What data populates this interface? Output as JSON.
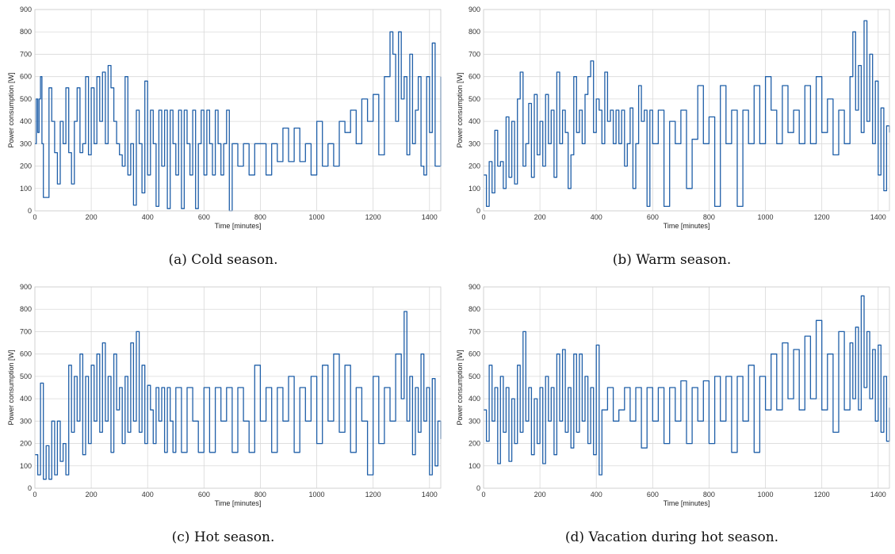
{
  "figure": {
    "captions": [
      "(a) Cold season.",
      "(b) Warm season.",
      "(c) Hot season.",
      "(d) Vacation during hot season."
    ]
  },
  "chart_data": [
    {
      "type": "line",
      "xlabel": "Time [minutes]",
      "ylabel": "Power consumption [W]",
      "xlim": [
        0,
        1440
      ],
      "ylim": [
        0,
        900
      ],
      "xticks": [
        0,
        200,
        400,
        600,
        800,
        1000,
        1200,
        1400
      ],
      "yticks": [
        0,
        100,
        200,
        300,
        400,
        500,
        600,
        700,
        800,
        900
      ],
      "grid": true,
      "line_color": "#1f5fa8",
      "x": [
        0,
        5,
        10,
        15,
        20,
        25,
        30,
        40,
        50,
        60,
        70,
        80,
        90,
        100,
        110,
        120,
        130,
        140,
        150,
        160,
        170,
        180,
        190,
        200,
        210,
        220,
        230,
        240,
        250,
        260,
        270,
        280,
        290,
        300,
        310,
        320,
        330,
        340,
        350,
        360,
        370,
        380,
        390,
        400,
        410,
        420,
        430,
        440,
        450,
        460,
        470,
        480,
        490,
        500,
        510,
        520,
        530,
        540,
        550,
        560,
        570,
        580,
        590,
        600,
        610,
        620,
        630,
        640,
        650,
        660,
        670,
        680,
        690,
        700,
        720,
        740,
        760,
        780,
        800,
        820,
        840,
        860,
        880,
        900,
        920,
        940,
        960,
        980,
        1000,
        1020,
        1040,
        1060,
        1080,
        1100,
        1120,
        1140,
        1160,
        1180,
        1200,
        1220,
        1240,
        1260,
        1270,
        1280,
        1290,
        1300,
        1310,
        1320,
        1330,
        1340,
        1350,
        1360,
        1370,
        1380,
        1390,
        1400,
        1410,
        1420,
        1430,
        1440
      ],
      "values": [
        300,
        500,
        350,
        500,
        600,
        300,
        60,
        60,
        550,
        400,
        260,
        120,
        400,
        300,
        550,
        260,
        120,
        400,
        550,
        260,
        300,
        600,
        250,
        550,
        300,
        600,
        400,
        620,
        300,
        650,
        550,
        400,
        300,
        250,
        200,
        600,
        160,
        300,
        25,
        450,
        300,
        80,
        580,
        160,
        450,
        300,
        20,
        450,
        200,
        450,
        10,
        450,
        300,
        160,
        450,
        10,
        450,
        300,
        160,
        450,
        10,
        300,
        450,
        160,
        450,
        300,
        160,
        450,
        300,
        160,
        300,
        450,
        0,
        300,
        200,
        300,
        160,
        300,
        300,
        160,
        300,
        220,
        370,
        220,
        370,
        220,
        300,
        160,
        400,
        200,
        300,
        200,
        400,
        350,
        450,
        300,
        500,
        400,
        520,
        250,
        600,
        800,
        700,
        400,
        800,
        500,
        600,
        250,
        700,
        300,
        450,
        600,
        200,
        160,
        600,
        350,
        750,
        200,
        200,
        600
      ]
    },
    {
      "type": "line",
      "xlabel": "Time [minutes]",
      "ylabel": "Power consumption [W]",
      "xlim": [
        0,
        1440
      ],
      "ylim": [
        0,
        900
      ],
      "xticks": [
        0,
        200,
        400,
        600,
        800,
        1000,
        1200,
        1400
      ],
      "yticks": [
        0,
        100,
        200,
        300,
        400,
        500,
        600,
        700,
        800,
        900
      ],
      "grid": true,
      "line_color": "#1f5fa8",
      "x": [
        0,
        10,
        20,
        30,
        40,
        50,
        60,
        70,
        80,
        90,
        100,
        110,
        120,
        130,
        140,
        150,
        160,
        170,
        180,
        190,
        200,
        210,
        220,
        230,
        240,
        250,
        260,
        270,
        280,
        290,
        300,
        310,
        320,
        330,
        340,
        350,
        360,
        370,
        380,
        390,
        400,
        410,
        420,
        430,
        440,
        450,
        460,
        470,
        480,
        490,
        500,
        510,
        520,
        530,
        540,
        550,
        560,
        570,
        580,
        590,
        600,
        620,
        640,
        660,
        680,
        700,
        720,
        740,
        760,
        780,
        800,
        820,
        840,
        860,
        880,
        900,
        920,
        940,
        960,
        980,
        1000,
        1020,
        1040,
        1060,
        1080,
        1100,
        1120,
        1140,
        1160,
        1180,
        1200,
        1220,
        1240,
        1260,
        1280,
        1300,
        1310,
        1320,
        1330,
        1340,
        1350,
        1360,
        1370,
        1380,
        1390,
        1400,
        1410,
        1420,
        1430,
        1440
      ],
      "values": [
        160,
        20,
        220,
        80,
        360,
        200,
        220,
        100,
        420,
        150,
        400,
        120,
        500,
        620,
        200,
        300,
        480,
        150,
        520,
        250,
        400,
        200,
        520,
        300,
        450,
        150,
        620,
        300,
        450,
        350,
        100,
        250,
        600,
        350,
        450,
        300,
        520,
        600,
        670,
        350,
        500,
        450,
        300,
        620,
        400,
        450,
        300,
        450,
        300,
        450,
        200,
        300,
        460,
        100,
        300,
        560,
        400,
        450,
        20,
        450,
        300,
        450,
        20,
        400,
        300,
        450,
        100,
        320,
        560,
        300,
        420,
        20,
        560,
        300,
        450,
        20,
        450,
        300,
        560,
        300,
        600,
        450,
        300,
        560,
        350,
        450,
        300,
        560,
        300,
        600,
        350,
        500,
        250,
        450,
        300,
        600,
        800,
        450,
        650,
        350,
        850,
        400,
        700,
        300,
        580,
        160,
        460,
        90,
        380,
        350
      ]
    },
    {
      "type": "line",
      "xlabel": "Time [minutes]",
      "ylabel": "Power consumption [W]",
      "xlim": [
        0,
        1440
      ],
      "ylim": [
        0,
        900
      ],
      "xticks": [
        0,
        200,
        400,
        600,
        800,
        1000,
        1200,
        1400
      ],
      "yticks": [
        0,
        100,
        200,
        300,
        400,
        500,
        600,
        700,
        800,
        900
      ],
      "grid": true,
      "line_color": "#1f5fa8",
      "x": [
        0,
        10,
        20,
        30,
        40,
        50,
        60,
        70,
        80,
        90,
        100,
        110,
        120,
        130,
        140,
        150,
        160,
        170,
        180,
        190,
        200,
        210,
        220,
        230,
        240,
        250,
        260,
        270,
        280,
        290,
        300,
        310,
        320,
        330,
        340,
        350,
        360,
        370,
        380,
        390,
        400,
        410,
        420,
        430,
        440,
        450,
        460,
        470,
        480,
        490,
        500,
        520,
        540,
        560,
        580,
        600,
        620,
        640,
        660,
        680,
        700,
        720,
        740,
        760,
        780,
        800,
        820,
        840,
        860,
        880,
        900,
        920,
        940,
        960,
        980,
        1000,
        1020,
        1040,
        1060,
        1080,
        1100,
        1120,
        1140,
        1160,
        1180,
        1200,
        1220,
        1240,
        1260,
        1280,
        1300,
        1310,
        1320,
        1330,
        1340,
        1350,
        1360,
        1370,
        1380,
        1390,
        1400,
        1410,
        1420,
        1430,
        1440
      ],
      "values": [
        150,
        60,
        470,
        40,
        190,
        40,
        300,
        60,
        300,
        120,
        200,
        60,
        550,
        250,
        500,
        300,
        600,
        150,
        500,
        200,
        550,
        300,
        600,
        250,
        650,
        300,
        500,
        160,
        600,
        350,
        450,
        200,
        500,
        250,
        650,
        300,
        700,
        250,
        550,
        200,
        460,
        350,
        200,
        450,
        300,
        450,
        160,
        450,
        300,
        160,
        450,
        160,
        450,
        300,
        160,
        450,
        160,
        450,
        300,
        450,
        160,
        450,
        300,
        160,
        550,
        300,
        450,
        160,
        450,
        300,
        500,
        160,
        450,
        300,
        500,
        200,
        550,
        300,
        600,
        250,
        550,
        160,
        450,
        300,
        60,
        500,
        200,
        450,
        300,
        600,
        400,
        790,
        300,
        500,
        150,
        450,
        250,
        600,
        300,
        450,
        60,
        490,
        100,
        300,
        220
      ]
    },
    {
      "type": "line",
      "xlabel": "Time [minutes]",
      "ylabel": "Power consumption [W]",
      "xlim": [
        0,
        1440
      ],
      "ylim": [
        0,
        900
      ],
      "xticks": [
        0,
        200,
        400,
        600,
        800,
        1000,
        1200,
        1400
      ],
      "yticks": [
        0,
        100,
        200,
        300,
        400,
        500,
        600,
        700,
        800,
        900
      ],
      "grid": true,
      "line_color": "#1f5fa8",
      "x": [
        0,
        10,
        20,
        30,
        40,
        50,
        60,
        70,
        80,
        90,
        100,
        110,
        120,
        130,
        140,
        150,
        160,
        170,
        180,
        190,
        200,
        210,
        220,
        230,
        240,
        250,
        260,
        270,
        280,
        290,
        300,
        310,
        320,
        330,
        340,
        350,
        360,
        370,
        380,
        390,
        400,
        410,
        420,
        440,
        460,
        480,
        500,
        520,
        540,
        560,
        580,
        600,
        620,
        640,
        660,
        680,
        700,
        720,
        740,
        760,
        780,
        800,
        820,
        840,
        860,
        880,
        900,
        920,
        940,
        960,
        980,
        1000,
        1020,
        1040,
        1060,
        1080,
        1100,
        1120,
        1140,
        1160,
        1180,
        1200,
        1220,
        1240,
        1260,
        1280,
        1300,
        1310,
        1320,
        1330,
        1340,
        1350,
        1360,
        1370,
        1380,
        1390,
        1400,
        1410,
        1420,
        1430,
        1440
      ],
      "values": [
        350,
        210,
        550,
        300,
        450,
        110,
        500,
        250,
        450,
        120,
        400,
        200,
        550,
        250,
        700,
        300,
        450,
        150,
        400,
        200,
        450,
        110,
        500,
        300,
        450,
        150,
        600,
        300,
        620,
        250,
        450,
        180,
        600,
        250,
        600,
        300,
        500,
        200,
        450,
        150,
        640,
        60,
        350,
        450,
        300,
        350,
        450,
        300,
        450,
        180,
        450,
        300,
        450,
        200,
        450,
        300,
        480,
        200,
        450,
        300,
        480,
        200,
        500,
        300,
        500,
        160,
        500,
        300,
        550,
        160,
        500,
        350,
        600,
        350,
        650,
        400,
        620,
        350,
        680,
        400,
        750,
        350,
        600,
        250,
        700,
        350,
        650,
        400,
        720,
        350,
        860,
        450,
        700,
        400,
        620,
        300,
        640,
        250,
        500,
        210,
        360
      ]
    }
  ]
}
